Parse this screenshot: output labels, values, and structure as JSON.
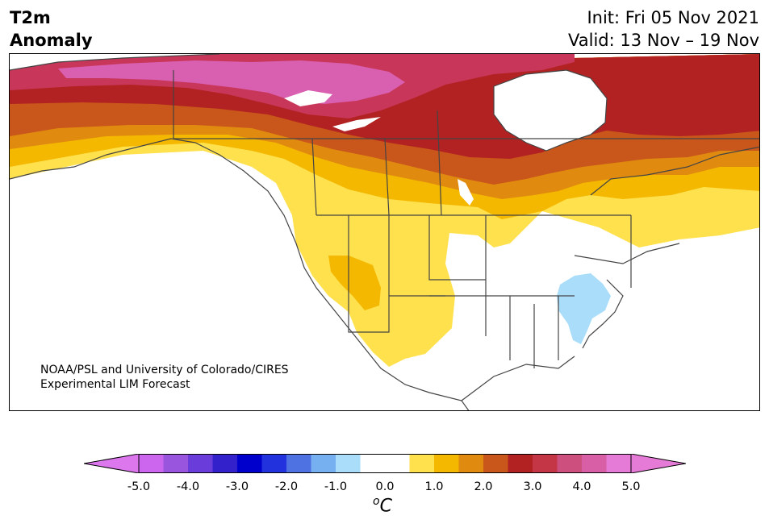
{
  "title": {
    "variable_line1": "T2m",
    "variable_line2": "Anomaly",
    "init": "Init: Fri 05 Nov 2021",
    "valid": "Valid: 13 Nov – 19 Nov"
  },
  "credit": {
    "line1": "NOAA/PSL and University of Colorado/CIRES",
    "line2": "Experimental LIM Forecast"
  },
  "colorbar": {
    "unit_base": "C",
    "unit_sup": "o",
    "tick_labels": [
      "-5.0",
      "-4.0",
      "-3.0",
      "-2.0",
      "-1.0",
      "0.0",
      "1.0",
      "2.0",
      "3.0",
      "4.0",
      "5.0"
    ],
    "colors": [
      "#cc66ee",
      "#9955dd",
      "#6a3ddb",
      "#3322cc",
      "#0000cc",
      "#2233dd",
      "#4f72e3",
      "#77b0f0",
      "#aaddfa",
      "#ffffff",
      "#ffffff",
      "#ffe14d",
      "#f4b800",
      "#e08a10",
      "#c9561a",
      "#b22222",
      "#c43545",
      "#cc4f7e",
      "#d85fa6",
      "#e57ad7"
    ],
    "extend_low_color": "#dd77ee",
    "extend_high_color": "#e57ad7"
  },
  "map_legend_levels": {
    "magenta": "#d95fb0",
    "pink_red": "#c8365a",
    "dark_red": "#b22222",
    "red_orange": "#c9561a",
    "orange": "#e08a10",
    "amber": "#f4b800",
    "yellow": "#ffe14d",
    "light_blue": "#aaddfa"
  }
}
